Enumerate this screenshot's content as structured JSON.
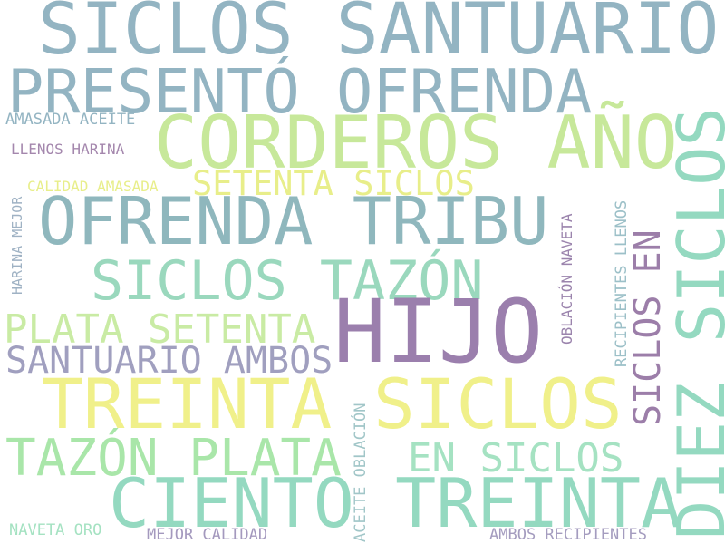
{
  "words": [
    {
      "id": "w1",
      "text": "SICLOS SANTUARIO",
      "color": "#93b4c2"
    },
    {
      "id": "w2",
      "text": "PRESENTÓ OFRENDA",
      "color": "#93b4c2"
    },
    {
      "id": "w3",
      "text": "CORDEROS AÑO",
      "color": "#c7e89a"
    },
    {
      "id": "w4",
      "text": "AMASADA ACEITE",
      "color": "#93b4c2"
    },
    {
      "id": "w5",
      "text": "LLENOS HARINA",
      "color": "#a487ad"
    },
    {
      "id": "w6",
      "text": "SETENTA SICLOS",
      "color": "#e8ee8a"
    },
    {
      "id": "w7",
      "text": "CALIDAD AMASADA",
      "color": "#e8ee8a"
    },
    {
      "id": "w8",
      "text": "HARINA MEJOR",
      "color": "#9fb2c4"
    },
    {
      "id": "w9",
      "text": "OFRENDA TRIBU",
      "color": "#8fb7bd"
    },
    {
      "id": "w10",
      "text": "SICLOS TAZÓN",
      "color": "#9ad8bd"
    },
    {
      "id": "w11",
      "text": "PLATA SETENTA",
      "color": "#c9eba4"
    },
    {
      "id": "w12",
      "text": "HIJO",
      "color": "#9b7fad"
    },
    {
      "id": "w13",
      "text": "SANTUARIO AMBOS",
      "color": "#a09fbf"
    },
    {
      "id": "w14",
      "text": "TREINTA SICLOS",
      "color": "#f0f08a"
    },
    {
      "id": "w15",
      "text": "TAZÓN PLATA",
      "color": "#a9e6a9"
    },
    {
      "id": "w16",
      "text": "EN SICLOS",
      "color": "#a5e2c2"
    },
    {
      "id": "w17",
      "text": "CIENTO TREINTA",
      "color": "#94d9c0"
    },
    {
      "id": "w18",
      "text": "NAVETA ORO",
      "color": "#a5e2c2"
    },
    {
      "id": "w19",
      "text": "MEJOR CALIDAD",
      "color": "#a499be"
    },
    {
      "id": "w20",
      "text": "AMBOS RECIPIENTES",
      "color": "#a49cbf"
    },
    {
      "id": "w21",
      "text": "ACEITE OBLACIÓN",
      "color": "#a1c6c8"
    },
    {
      "id": "w22",
      "text": "OBLACIÓN NAVETA",
      "color": "#9b84ad"
    },
    {
      "id": "w23",
      "text": "RECIPIENTES LLENOS",
      "color": "#9cc0c8"
    },
    {
      "id": "w24",
      "text": "SICLOS EN",
      "color": "#9c7ea9"
    },
    {
      "id": "w25",
      "text": "DIEZ SICLOS",
      "color": "#94d9c0"
    }
  ]
}
